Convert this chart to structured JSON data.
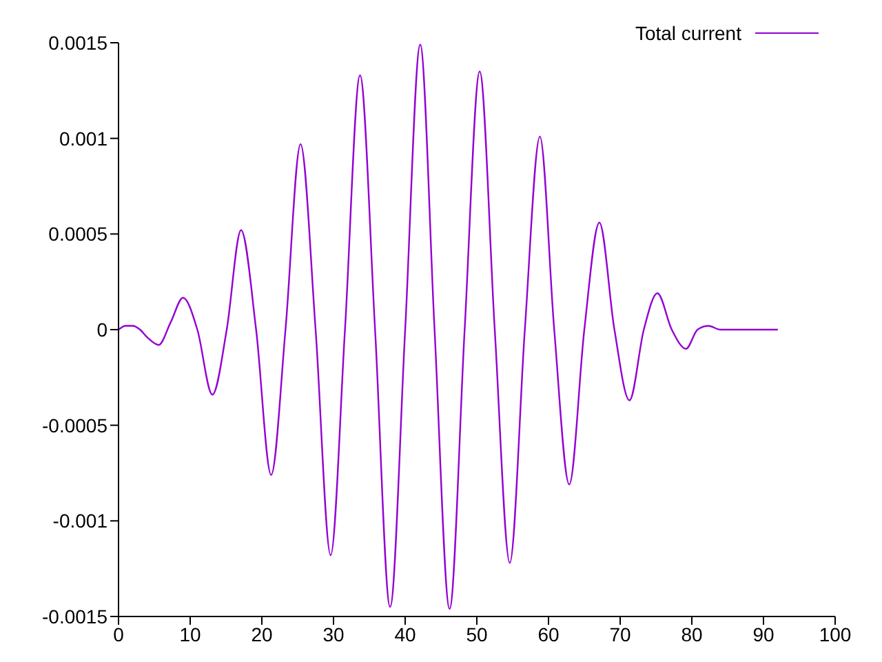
{
  "chart_data": {
    "type": "line",
    "x": [
      0,
      1,
      2,
      3,
      4,
      5.6,
      7.3,
      9,
      11,
      13.1,
      15.1,
      17.1,
      19.2,
      21.3,
      23.3,
      25.4,
      27.5,
      29.6,
      31.6,
      33.7,
      35.8,
      37.9,
      40,
      42.1,
      44.1,
      46.2,
      48.3,
      50.4,
      52.5,
      54.6,
      56.7,
      58.8,
      60.8,
      62.9,
      65,
      67.1,
      69.2,
      71.3,
      73.3,
      75.2,
      77.2,
      79.2,
      80.8,
      82.3,
      84,
      86,
      88,
      90,
      92
    ],
    "series": [
      {
        "name": "Total current",
        "color": "#9400d3",
        "values": [
          0,
          2e-05,
          2e-05,
          0,
          -4e-05,
          -8e-05,
          4e-05,
          0.000167,
          0,
          -0.00034,
          0,
          0.00052,
          0,
          -0.00076,
          0,
          0.00097,
          0,
          -0.00118,
          0,
          0.00133,
          0,
          -0.00145,
          0,
          0.00149,
          0,
          -0.00146,
          0,
          0.00135,
          0,
          -0.00122,
          0,
          0.00101,
          0,
          -0.00081,
          0,
          0.00056,
          0,
          -0.00037,
          0,
          0.00019,
          0,
          -0.0001,
          0,
          2e-05,
          0,
          0,
          0,
          0,
          0
        ]
      }
    ],
    "xlim": [
      0,
      100
    ],
    "xticks": [
      0,
      10,
      20,
      30,
      40,
      50,
      60,
      70,
      80,
      90,
      100
    ],
    "ylim": [
      -0.0015,
      0.0015
    ],
    "yticks": [
      -0.0015,
      -0.001,
      -0.0005,
      0,
      0.0005,
      0.001,
      0.0015
    ],
    "grid": false,
    "legend": "top right",
    "marker": "none",
    "line_style": "solid"
  }
}
